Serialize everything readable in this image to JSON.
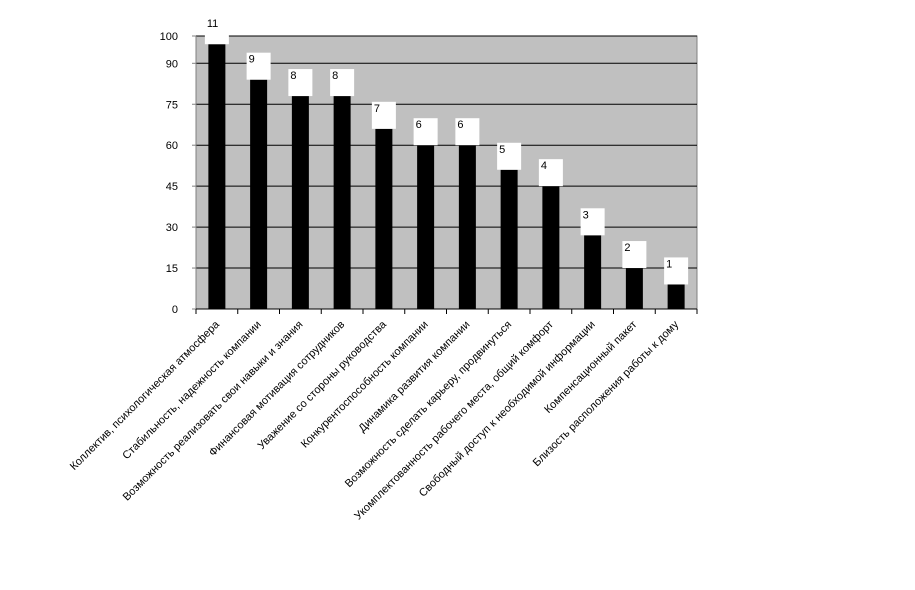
{
  "chart_data": {
    "type": "bar",
    "title": "",
    "xlabel": "",
    "ylabel": "",
    "ylim": [
      0,
      100
    ],
    "y_ticks": [
      0,
      15,
      30,
      45,
      60,
      75,
      90,
      100
    ],
    "grid": true,
    "legend": "none",
    "categories": [
      "Коллектив, психологическая атмосфера",
      "Стабильность, надежность компании",
      "Возможность реализовать свои навыки и знания",
      "Финансовая мотивация сотрудников",
      "Уважение со стороны руководства",
      "Конкурентоспособность компании",
      "Динамика развития компании",
      "Возможность сделать карьеру, продвинуться",
      "Укомплектованность рабочего места, общий комфорт",
      "Свободный доступ к необходимой информации",
      "Компенсационный пакет",
      "Близость расположения работы к дому"
    ],
    "values": [
      97,
      84,
      78,
      78,
      66,
      60,
      60,
      51,
      45,
      27,
      15,
      9
    ],
    "data_labels": [
      "11",
      "9",
      "8",
      "8",
      "7",
      "6",
      "6",
      "5",
      "4",
      "3",
      "2",
      "1"
    ],
    "colors": {
      "plot_background": "#c0c0c0",
      "bar": "#000000",
      "gridline": "#000000",
      "label_box": "#ffffff"
    }
  }
}
